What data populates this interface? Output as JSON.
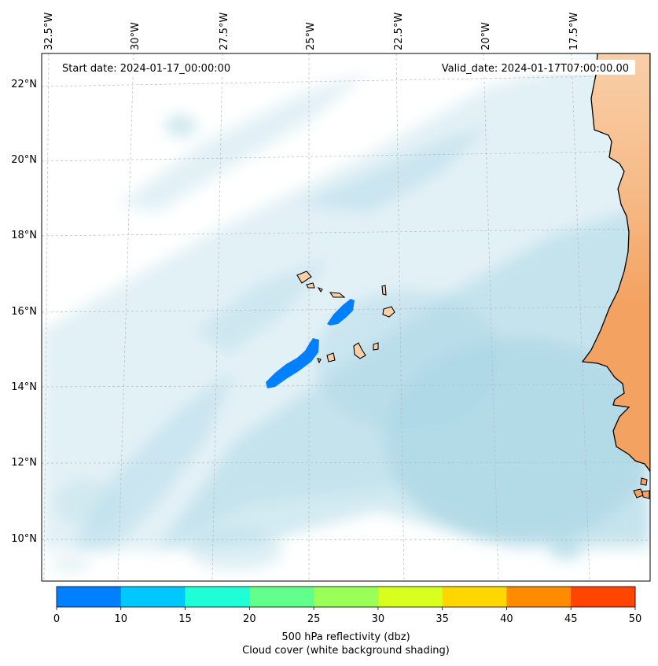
{
  "header": {
    "start_date": "Start date: 2024-01-17_00:00:00",
    "valid_date": "Valid_date: 2024-01-17T07:00:00.00"
  },
  "map": {
    "lon_labels": [
      "32.5°W",
      "30°W",
      "27.5°W",
      "25°W",
      "22.5°W",
      "20°W",
      "17.5°W"
    ],
    "lat_labels": [
      "22°N",
      "20°N",
      "18°N",
      "16°N",
      "14°N",
      "12°N",
      "10°N"
    ],
    "land_color": "#f4a262",
    "cloud_color": "#add8e6",
    "echo_color": "#0080ff"
  },
  "colorbar": {
    "ticks": [
      "0",
      "10",
      "15",
      "20",
      "25",
      "30",
      "35",
      "40",
      "45",
      "50"
    ],
    "colors": [
      "#0080ff",
      "#00c8ff",
      "#1effd8",
      "#62ff8c",
      "#9aff56",
      "#d8ff1e",
      "#ffd700",
      "#ff8c00",
      "#ff4500"
    ],
    "label": "500 hPa reflectivity (dbz)",
    "sublabel": "Cloud cover (white background shading)"
  }
}
